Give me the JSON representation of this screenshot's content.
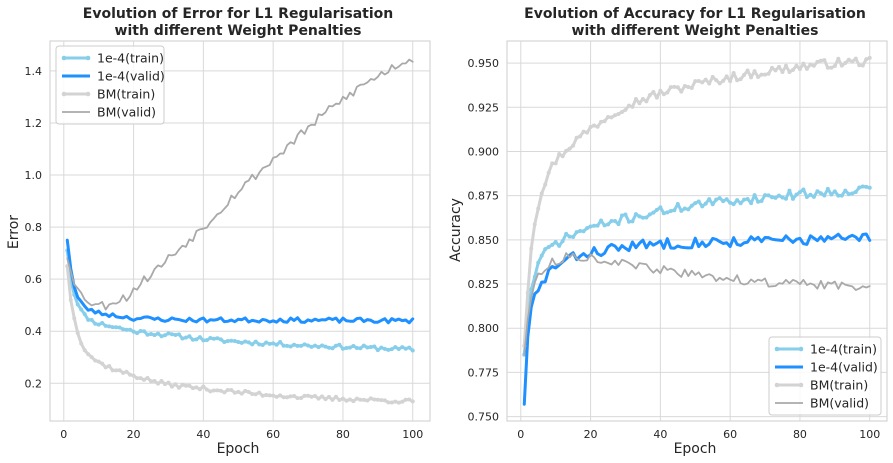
{
  "chart_data": [
    {
      "type": "line",
      "title_line1": "Evolution of Error for L1 Regularisation",
      "title_line2": "with different Weight Penalties",
      "xlabel": "Epoch",
      "ylabel": "Error",
      "xlim": [
        -3.95,
        104.95
      ],
      "ylim": [
        0.055,
        1.515
      ],
      "xticks": [
        0,
        20,
        40,
        60,
        80,
        100
      ],
      "xtick_labels": [
        "0",
        "20",
        "40",
        "60",
        "80",
        "100"
      ],
      "yticks": [
        0.2,
        0.4,
        0.6,
        0.8,
        1.0,
        1.2,
        1.4
      ],
      "ytick_labels": [
        "0.2",
        "0.4",
        "0.6",
        "0.8",
        "1.0",
        "1.2",
        "1.4"
      ],
      "grid": true,
      "legend_position": "upper left",
      "series": [
        {
          "name": "1e-4(train)",
          "color": "#87ceeb",
          "marker": true,
          "lw": 3,
          "x_start": 1,
          "x_end": 100,
          "anchors": [
            [
              1,
              0.71
            ],
            [
              2,
              0.6
            ],
            [
              3,
              0.54
            ],
            [
              4,
              0.51
            ],
            [
              5,
              0.48
            ],
            [
              6,
              0.46
            ],
            [
              8,
              0.44
            ],
            [
              10,
              0.43
            ],
            [
              15,
              0.415
            ],
            [
              20,
              0.4
            ],
            [
              30,
              0.385
            ],
            [
              40,
              0.37
            ],
            [
              50,
              0.36
            ],
            [
              60,
              0.352
            ],
            [
              70,
              0.345
            ],
            [
              80,
              0.34
            ],
            [
              90,
              0.335
            ],
            [
              100,
              0.33
            ]
          ],
          "noise": 0.008,
          "seed": 11
        },
        {
          "name": "1e-4(valid)",
          "color": "#1e90ff",
          "marker": false,
          "lw": 3,
          "x_start": 1,
          "x_end": 100,
          "anchors": [
            [
              1,
              0.75
            ],
            [
              2,
              0.64
            ],
            [
              3,
              0.57
            ],
            [
              4,
              0.53
            ],
            [
              5,
              0.51
            ],
            [
              6,
              0.49
            ],
            [
              8,
              0.48
            ],
            [
              10,
              0.47
            ],
            [
              15,
              0.46
            ],
            [
              20,
              0.45
            ],
            [
              30,
              0.445
            ],
            [
              40,
              0.443
            ],
            [
              60,
              0.443
            ],
            [
              80,
              0.442
            ],
            [
              100,
              0.44
            ]
          ],
          "noise": 0.009,
          "seed": 23
        },
        {
          "name": "BM(train)",
          "color": "#d3d3d3",
          "marker": true,
          "lw": 3,
          "x_start": 1,
          "x_end": 100,
          "anchors": [
            [
              1,
              0.65
            ],
            [
              2,
              0.52
            ],
            [
              3,
              0.45
            ],
            [
              4,
              0.4
            ],
            [
              5,
              0.36
            ],
            [
              6,
              0.33
            ],
            [
              8,
              0.3
            ],
            [
              10,
              0.28
            ],
            [
              15,
              0.25
            ],
            [
              20,
              0.23
            ],
            [
              25,
              0.21
            ],
            [
              30,
              0.195
            ],
            [
              40,
              0.18
            ],
            [
              50,
              0.165
            ],
            [
              60,
              0.155
            ],
            [
              70,
              0.145
            ],
            [
              80,
              0.14
            ],
            [
              90,
              0.135
            ],
            [
              100,
              0.13
            ]
          ],
          "noise": 0.008,
          "seed": 37
        },
        {
          "name": "BM(valid)",
          "color": "#a9a9a9",
          "marker": false,
          "lw": 1.8,
          "x_start": 1,
          "x_end": 100,
          "anchors": [
            [
              1,
              0.68
            ],
            [
              3,
              0.58
            ],
            [
              5,
              0.54
            ],
            [
              8,
              0.51
            ],
            [
              10,
              0.5
            ],
            [
              12,
              0.5
            ],
            [
              15,
              0.52
            ],
            [
              18,
              0.53
            ],
            [
              20,
              0.56
            ],
            [
              25,
              0.62
            ],
            [
              30,
              0.68
            ],
            [
              35,
              0.74
            ],
            [
              40,
              0.8
            ],
            [
              45,
              0.87
            ],
            [
              50,
              0.94
            ],
            [
              55,
              1.0
            ],
            [
              60,
              1.06
            ],
            [
              65,
              1.12
            ],
            [
              70,
              1.18
            ],
            [
              75,
              1.24
            ],
            [
              80,
              1.29
            ],
            [
              85,
              1.34
            ],
            [
              90,
              1.38
            ],
            [
              95,
              1.42
            ],
            [
              100,
              1.45
            ]
          ],
          "noise": 0.018,
          "seed": 53
        }
      ]
    },
    {
      "type": "line",
      "title_line1": "Evolution of Accuracy for L1 Regularisation",
      "title_line2": "with different Weight Penalties",
      "xlabel": "Epoch",
      "ylabel": "Accuracy",
      "xlim": [
        -3.95,
        104.95
      ],
      "ylim": [
        0.7475,
        0.9625
      ],
      "xticks": [
        0,
        20,
        40,
        60,
        80,
        100
      ],
      "xtick_labels": [
        "0",
        "20",
        "40",
        "60",
        "80",
        "100"
      ],
      "yticks": [
        0.75,
        0.775,
        0.8,
        0.825,
        0.85,
        0.875,
        0.9,
        0.925,
        0.95
      ],
      "ytick_labels": [
        "0.750",
        "0.775",
        "0.800",
        "0.825",
        "0.850",
        "0.875",
        "0.900",
        "0.925",
        "0.950"
      ],
      "grid": true,
      "legend_position": "lower right",
      "series": [
        {
          "name": "1e-4(train)",
          "color": "#87ceeb",
          "marker": true,
          "lw": 3,
          "x_start": 1,
          "x_end": 100,
          "anchors": [
            [
              1,
              0.785
            ],
            [
              2,
              0.808
            ],
            [
              3,
              0.822
            ],
            [
              4,
              0.83
            ],
            [
              5,
              0.836
            ],
            [
              6,
              0.84
            ],
            [
              8,
              0.845
            ],
            [
              10,
              0.848
            ],
            [
              15,
              0.853
            ],
            [
              20,
              0.857
            ],
            [
              30,
              0.862
            ],
            [
              40,
              0.866
            ],
            [
              50,
              0.87
            ],
            [
              60,
              0.872
            ],
            [
              70,
              0.874
            ],
            [
              80,
              0.876
            ],
            [
              90,
              0.877
            ],
            [
              100,
              0.879
            ]
          ],
          "noise": 0.0025,
          "seed": 71
        },
        {
          "name": "1e-4(valid)",
          "color": "#1e90ff",
          "marker": false,
          "lw": 3,
          "x_start": 1,
          "x_end": 100,
          "anchors": [
            [
              1,
              0.757
            ],
            [
              2,
              0.795
            ],
            [
              3,
              0.812
            ],
            [
              4,
              0.818
            ],
            [
              5,
              0.82
            ],
            [
              6,
              0.825
            ],
            [
              8,
              0.832
            ],
            [
              10,
              0.835
            ],
            [
              15,
              0.84
            ],
            [
              20,
              0.843
            ],
            [
              30,
              0.846
            ],
            [
              40,
              0.848
            ],
            [
              60,
              0.849
            ],
            [
              80,
              0.85
            ],
            [
              100,
              0.851
            ]
          ],
          "noise": 0.003,
          "seed": 83
        },
        {
          "name": "BM(train)",
          "color": "#d3d3d3",
          "marker": true,
          "lw": 3,
          "x_start": 1,
          "x_end": 100,
          "anchors": [
            [
              1,
              0.79
            ],
            [
              2,
              0.82
            ],
            [
              3,
              0.845
            ],
            [
              4,
              0.86
            ],
            [
              5,
              0.87
            ],
            [
              6,
              0.878
            ],
            [
              8,
              0.888
            ],
            [
              10,
              0.895
            ],
            [
              15,
              0.905
            ],
            [
              20,
              0.913
            ],
            [
              25,
              0.92
            ],
            [
              30,
              0.926
            ],
            [
              40,
              0.933
            ],
            [
              50,
              0.938
            ],
            [
              60,
              0.942
            ],
            [
              70,
              0.945
            ],
            [
              80,
              0.948
            ],
            [
              90,
              0.95
            ],
            [
              100,
              0.951
            ]
          ],
          "noise": 0.0025,
          "seed": 97
        },
        {
          "name": "BM(valid)",
          "color": "#a9a9a9",
          "marker": false,
          "lw": 1.8,
          "x_start": 1,
          "x_end": 100,
          "anchors": [
            [
              1,
              0.785
            ],
            [
              2,
              0.805
            ],
            [
              3,
              0.817
            ],
            [
              4,
              0.824
            ],
            [
              5,
              0.83
            ],
            [
              7,
              0.835
            ],
            [
              10,
              0.838
            ],
            [
              13,
              0.84
            ],
            [
              16,
              0.841
            ],
            [
              20,
              0.84
            ],
            [
              25,
              0.838
            ],
            [
              30,
              0.836
            ],
            [
              40,
              0.833
            ],
            [
              50,
              0.83
            ],
            [
              60,
              0.828
            ],
            [
              70,
              0.826
            ],
            [
              80,
              0.825
            ],
            [
              90,
              0.824
            ],
            [
              100,
              0.824
            ]
          ],
          "noise": 0.0025,
          "seed": 113
        }
      ]
    }
  ]
}
